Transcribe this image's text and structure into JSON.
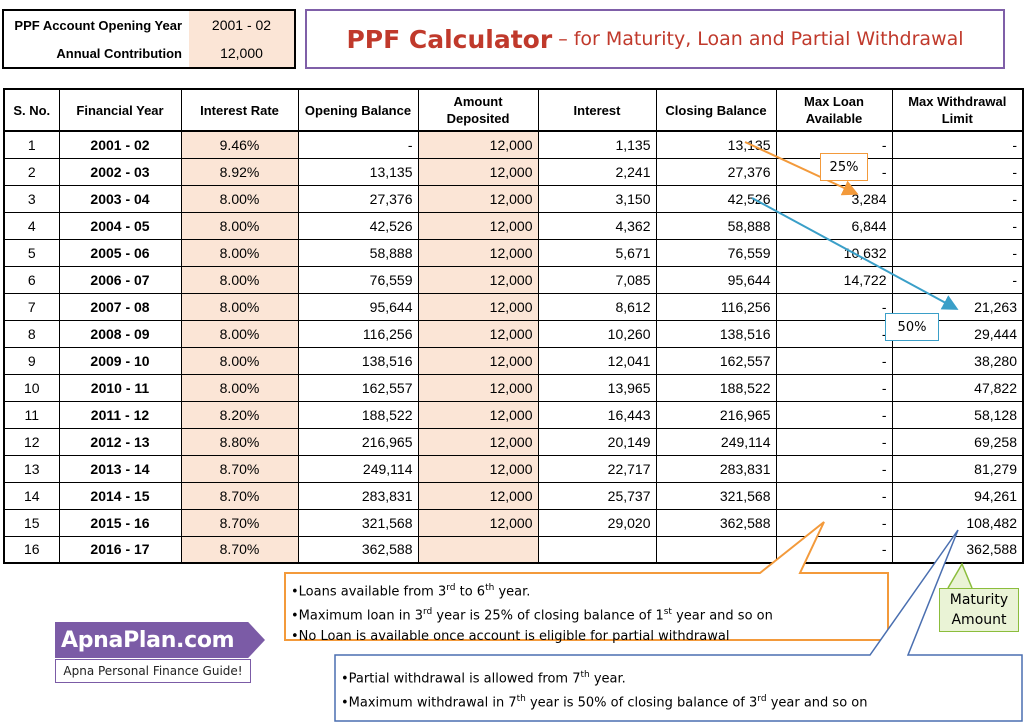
{
  "info": {
    "opening_year_label": "PPF Account Opening Year",
    "opening_year_value": "2001 - 02",
    "contribution_label": "Annual Contribution",
    "contribution_value": "12,000"
  },
  "title": {
    "main": "PPF Calculator",
    "sub": "– for Maturity, Loan and Partial Withdrawal"
  },
  "table": {
    "headers": [
      "S. No.",
      "Financial Year",
      "Interest Rate",
      "Opening Balance",
      "Amount Deposited",
      "Interest",
      "Closing Balance",
      "Max Loan Available",
      "Max Withdrawal Limit"
    ],
    "rows": [
      [
        "1",
        "2001 - 02",
        "9.46%",
        "-",
        "12,000",
        "1,135",
        "13,135",
        "-",
        "-"
      ],
      [
        "2",
        "2002 - 03",
        "8.92%",
        "13,135",
        "12,000",
        "2,241",
        "27,376",
        "-",
        "-"
      ],
      [
        "3",
        "2003 - 04",
        "8.00%",
        "27,376",
        "12,000",
        "3,150",
        "42,526",
        "3,284",
        "-"
      ],
      [
        "4",
        "2004 - 05",
        "8.00%",
        "42,526",
        "12,000",
        "4,362",
        "58,888",
        "6,844",
        "-"
      ],
      [
        "5",
        "2005 - 06",
        "8.00%",
        "58,888",
        "12,000",
        "5,671",
        "76,559",
        "10,632",
        "-"
      ],
      [
        "6",
        "2006 - 07",
        "8.00%",
        "76,559",
        "12,000",
        "7,085",
        "95,644",
        "14,722",
        "-"
      ],
      [
        "7",
        "2007 - 08",
        "8.00%",
        "95,644",
        "12,000",
        "8,612",
        "116,256",
        "-",
        "21,263"
      ],
      [
        "8",
        "2008 - 09",
        "8.00%",
        "116,256",
        "12,000",
        "10,260",
        "138,516",
        "-",
        "29,444"
      ],
      [
        "9",
        "2009 - 10",
        "8.00%",
        "138,516",
        "12,000",
        "12,041",
        "162,557",
        "-",
        "38,280"
      ],
      [
        "10",
        "2010 - 11",
        "8.00%",
        "162,557",
        "12,000",
        "13,965",
        "188,522",
        "-",
        "47,822"
      ],
      [
        "11",
        "2011 - 12",
        "8.20%",
        "188,522",
        "12,000",
        "16,443",
        "216,965",
        "-",
        "58,128"
      ],
      [
        "12",
        "2012 - 13",
        "8.80%",
        "216,965",
        "12,000",
        "20,149",
        "249,114",
        "-",
        "69,258"
      ],
      [
        "13",
        "2013 - 14",
        "8.70%",
        "249,114",
        "12,000",
        "22,717",
        "283,831",
        "-",
        "81,279"
      ],
      [
        "14",
        "2014 - 15",
        "8.70%",
        "283,831",
        "12,000",
        "25,737",
        "321,568",
        "-",
        "94,261"
      ],
      [
        "15",
        "2015 - 16",
        "8.70%",
        "321,568",
        "12,000",
        "29,020",
        "362,588",
        "-",
        "108,482"
      ],
      [
        "16",
        "2016 - 17",
        "8.70%",
        "362,588",
        "",
        "",
        "",
        "-",
        "362,588"
      ]
    ]
  },
  "tags": {
    "loan_pct": "25%",
    "withdraw_pct": "50%"
  },
  "loan_callout": {
    "line1_a": "•Loans available from 3",
    "line1_sup1": "rd",
    "line1_b": " to 6",
    "line1_sup2": "th",
    "line1_c": " year.",
    "line2_a": "•Maximum loan in 3",
    "line2_sup1": "rd",
    "line2_b": " year is 25% of closing balance of 1",
    "line2_sup2": "st",
    "line2_c": " year and so on",
    "line3": "•No Loan is available once account is eligible for partial withdrawal"
  },
  "withdraw_callout": {
    "line1_a": "•Partial withdrawal is allowed from 7",
    "line1_sup1": "th",
    "line1_b": " year.",
    "line2_a": "•Maximum withdrawal in 7",
    "line2_sup1": "th",
    "line2_b": " year is 50% of closing balance of 3",
    "line2_sup2": "rd",
    "line2_c": " year and so on"
  },
  "maturity": {
    "line1": "Maturity",
    "line2": "Amount"
  },
  "logo": {
    "brand": "ApnaPlan.com",
    "tagline": "Apna Personal Finance Guide!"
  },
  "colors": {
    "peach": "#fbe5d6",
    "title_red": "#c0392b",
    "orange": "#f39a3b",
    "blue": "#3a9fc8",
    "purple": "#7b5ba6",
    "green": "#8bbd3c"
  }
}
